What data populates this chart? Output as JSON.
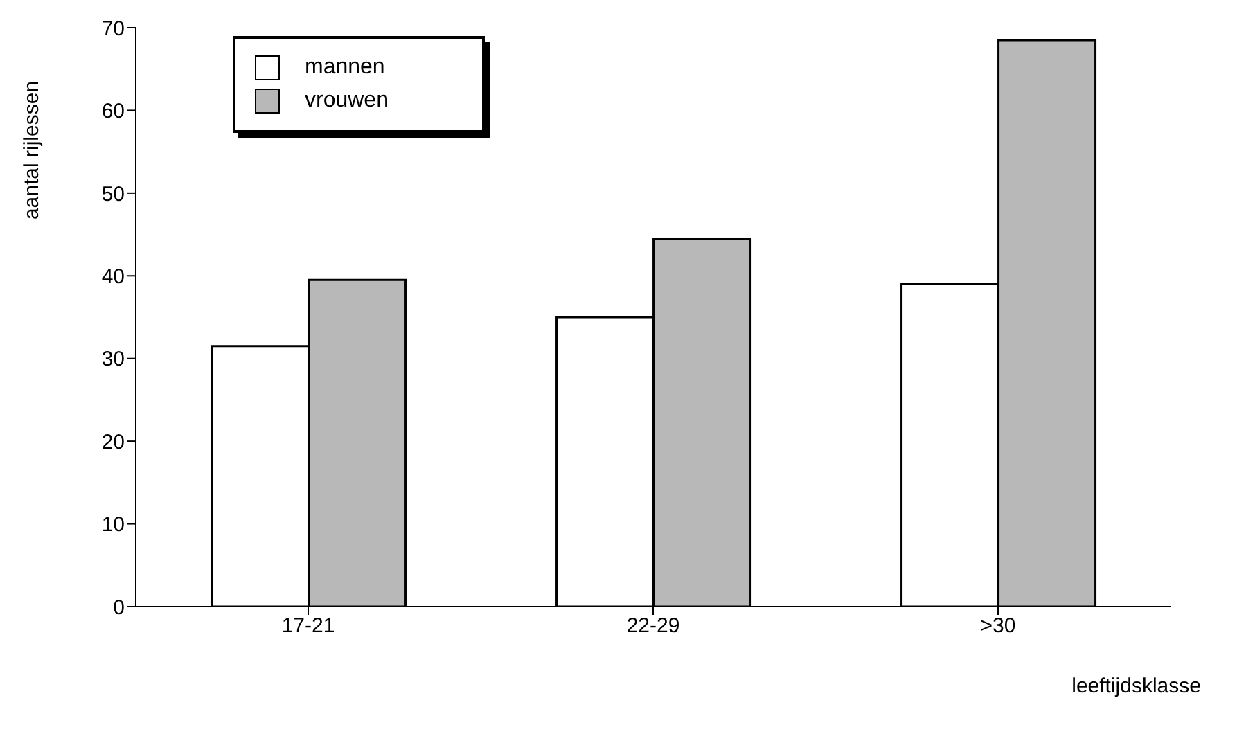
{
  "chart_data": {
    "type": "bar",
    "xlabel": "leeftijdsklasse",
    "ylabel": "aantal rijlessen",
    "categories": [
      "17-21",
      "22-29",
      ">30"
    ],
    "series": [
      {
        "name": "mannen",
        "color": "#ffffff",
        "values": [
          31.5,
          35,
          39
        ]
      },
      {
        "name": "vrouwen",
        "color": "#b8b8b8",
        "values": [
          39.5,
          44.5,
          68.5
        ]
      }
    ],
    "ylim": [
      0,
      70
    ],
    "yticks": [
      0,
      10,
      20,
      30,
      40,
      50,
      60,
      70
    ],
    "grid": false,
    "legend": "top left"
  }
}
